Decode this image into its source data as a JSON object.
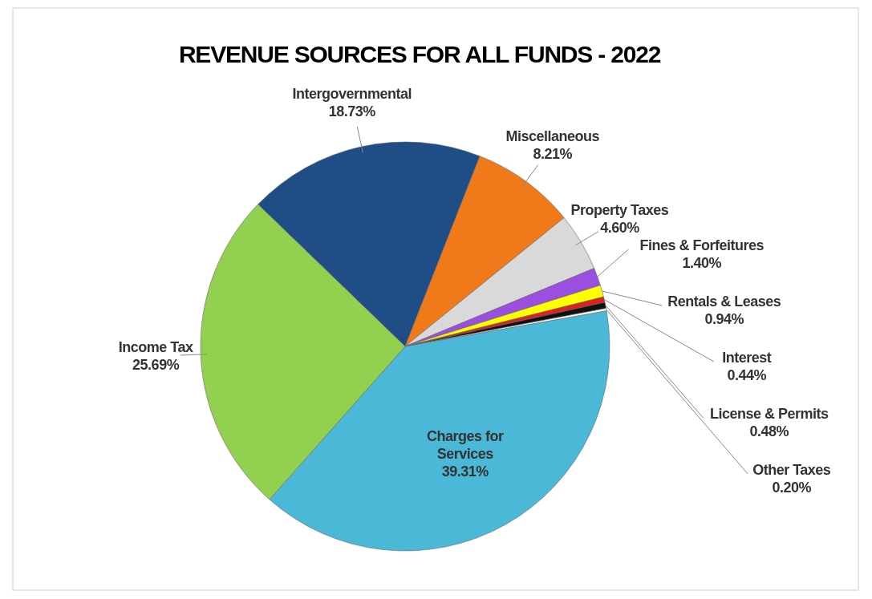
{
  "chart_data": {
    "type": "pie",
    "title": "REVENUE SOURCES FOR ALL FUNDS - 2022",
    "categories": [
      "Intergovernmental",
      "Miscellaneous",
      "Property Taxes",
      "Fines & Forfeitures",
      "Rentals & Leases",
      "Interest",
      "License & Permits",
      "Other Taxes",
      "Charges for Services",
      "Income Tax"
    ],
    "values": [
      18.73,
      8.21,
      4.6,
      1.4,
      0.94,
      0.44,
      0.48,
      0.2,
      39.31,
      25.69
    ],
    "value_labels": [
      "18.73%",
      "8.21%",
      "4.60%",
      "1.40%",
      "0.94%",
      "0.44%",
      "0.48%",
      "0.20%",
      "39.31%",
      "25.69%"
    ],
    "colors": [
      "#1f4e86",
      "#f07a1a",
      "#d9d9d9",
      "#9b4fe0",
      "#ffff00",
      "#e02020",
      "#111111",
      "#ffffff",
      "#4bb8d8",
      "#92d050"
    ]
  }
}
